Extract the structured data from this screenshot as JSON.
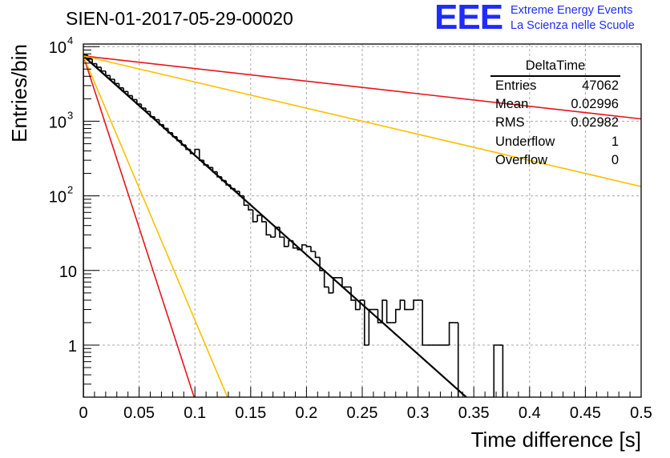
{
  "header": {
    "run_title": "SIEN-01-2017-05-29-00020",
    "logo_mark": "EEE",
    "logo_line1": "Extreme Energy Events",
    "logo_line2": "La Scienza nelle Scuole",
    "logo_color": "#1f2bff"
  },
  "stats": {
    "title": "DeltaTime",
    "rows": [
      {
        "label": "Entries",
        "value": "47062"
      },
      {
        "label": "Mean",
        "value": "0.02996"
      },
      {
        "label": "RMS",
        "value": "0.02982"
      },
      {
        "label": "Underflow",
        "value": "1"
      },
      {
        "label": "Overflow",
        "value": "0"
      }
    ]
  },
  "chart_data": {
    "type": "line",
    "xlabel": "Time difference [s]",
    "ylabel": "Entries/bin",
    "xlim": [
      0,
      0.5
    ],
    "ylim": [
      0.2,
      12000
    ],
    "yscale": "log",
    "grid": true,
    "x_ticks": [
      "0",
      "0.05",
      "0.1",
      "0.15",
      "0.2",
      "0.25",
      "0.3",
      "0.35",
      "0.4",
      "0.45",
      "0.5"
    ],
    "y_ticks": [
      {
        "value": 1,
        "label": "1"
      },
      {
        "value": 10,
        "label": "10"
      },
      {
        "value": 100,
        "label": "10",
        "exp": "2"
      },
      {
        "value": 1000,
        "label": "10",
        "exp": "3"
      },
      {
        "value": 10000,
        "label": "10",
        "exp": "4"
      }
    ],
    "histogram": {
      "name": "DeltaTime",
      "bin_width": 0.004,
      "x_start": 0,
      "color": "#000000",
      "values": [
        7700,
        6800,
        5900,
        5300,
        4700,
        4100,
        3650,
        3200,
        2800,
        2500,
        2200,
        1950,
        1700,
        1500,
        1350,
        1150,
        1050,
        900,
        800,
        700,
        620,
        550,
        480,
        420,
        370,
        420,
        300,
        260,
        240,
        210,
        180,
        160,
        140,
        125,
        115,
        100,
        75,
        65,
        45,
        55,
        45,
        30,
        28,
        38,
        28,
        21,
        25,
        20,
        19,
        22,
        21,
        18,
        15,
        10,
        6,
        5,
        8,
        8,
        6,
        6,
        4,
        3,
        4,
        1,
        3,
        3,
        2,
        4,
        2,
        2,
        3,
        4,
        3,
        3,
        4,
        4,
        1,
        1,
        1,
        1,
        1,
        1,
        2,
        2,
        0,
        0,
        0,
        0,
        0,
        0,
        0,
        0,
        1,
        1
      ]
    },
    "fit_lines": [
      {
        "name": "black-fit",
        "color": "#000000",
        "width": 2.2,
        "y0": 7500,
        "tau": 0.0326
      },
      {
        "name": "red-fast",
        "color": "#e8141c",
        "width": 1.6,
        "y0": 7500,
        "tau": 0.00943
      },
      {
        "name": "yellow-fast",
        "color": "#ffc000",
        "width": 1.6,
        "y0": 7500,
        "tau": 0.01227
      },
      {
        "name": "red-slow",
        "color": "#e8141c",
        "width": 1.6,
        "y0": 7500,
        "tau": 0.2573
      },
      {
        "name": "yellow-slow",
        "color": "#ffc000",
        "width": 1.6,
        "y0": 7500,
        "tau": 0.1241
      }
    ]
  }
}
